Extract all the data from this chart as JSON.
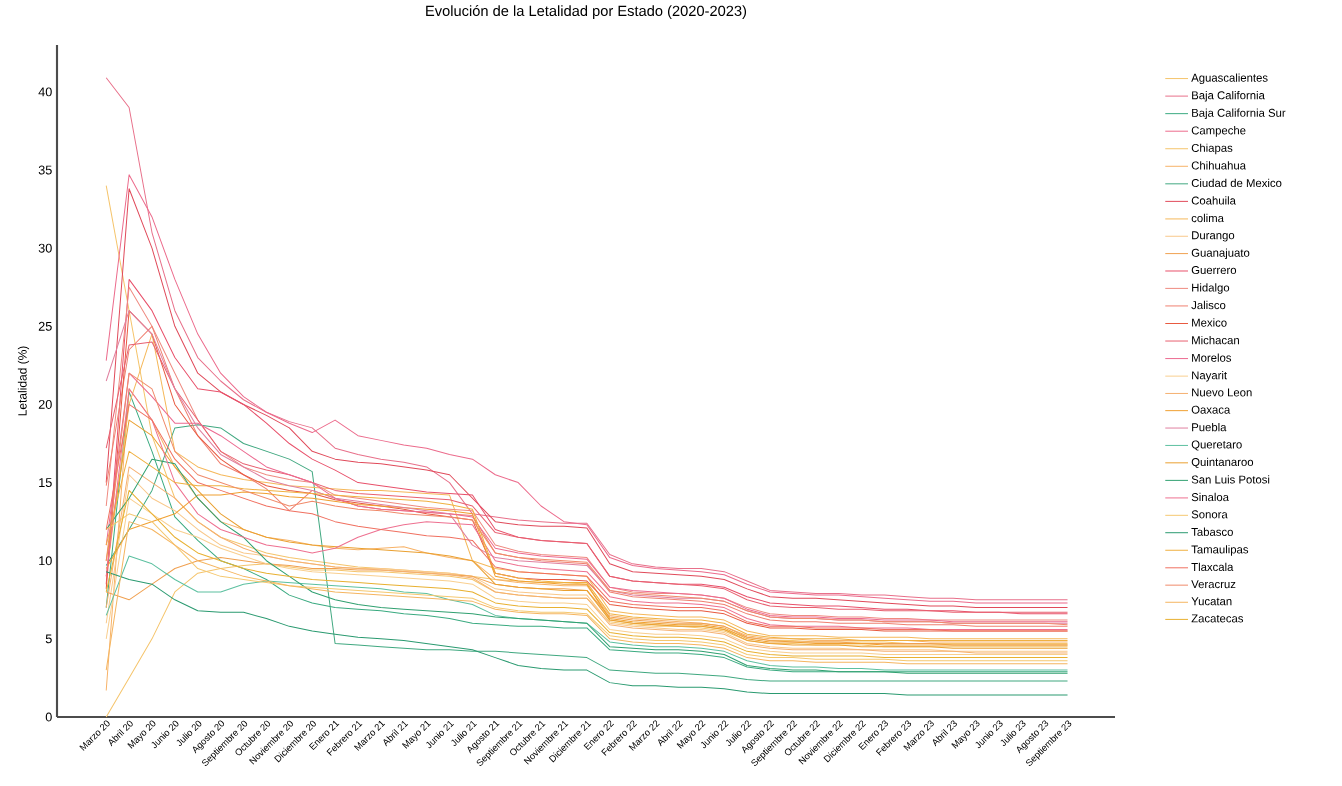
{
  "chart_data": {
    "type": "line",
    "title": "Evolución de la Letalidad por Estado (2020-2023)",
    "ylabel": "Letalidad (%)",
    "categories": [
      "Marzo 20",
      "Abril 20",
      "Mayo 20",
      "Junio 20",
      "Julio 20",
      "Agosto 20",
      "Septiembre 20",
      "Octubre 20",
      "Noviembre 20",
      "Diciembre 20",
      "Enero 21",
      "Febrero 21",
      "Marzo 21",
      "Abril 21",
      "Mayo 21",
      "Junio 21",
      "Julio 21",
      "Agosto 21",
      "Septiembre 21",
      "Octubre 21",
      "Noviembre 21",
      "Diciembre 21",
      "Enero 22",
      "Febrero 22",
      "Marzo 22",
      "Abril 22",
      "Mayo 22",
      "Junio 22",
      "Julio 22",
      "Agosto 22",
      "Septiembre 22",
      "Octubre 22",
      "Noviembre 22",
      "Diciembre 22",
      "Enero 23",
      "Febrero 23",
      "Marzo 23",
      "Abril 23",
      "Mayo 23",
      "Junio 23",
      "Julio 23",
      "Agosto 23",
      "Septiembre 23"
    ],
    "ylim": [
      0,
      43
    ],
    "yticks": [
      0,
      5,
      10,
      15,
      20,
      25,
      30,
      35,
      40
    ],
    "legend": "right",
    "series": [
      {
        "name": "Aguascalientes",
        "color": "#f5c46b",
        "values": [
          34,
          26,
          18,
          14,
          12.5,
          11.5,
          11,
          10.5,
          10.2,
          10,
          9.8,
          9.6,
          9.5,
          9.4,
          9.3,
          9.2,
          9,
          8.8,
          8.7,
          8.6,
          8.6,
          8.5,
          6.2,
          6,
          5.9,
          5.8,
          5.8,
          5.6,
          5.1,
          4.9,
          4.9,
          4.8,
          4.8,
          4.8,
          4.8,
          4.7,
          4.7,
          4.7,
          4.7,
          4.7,
          4.7,
          4.7,
          4.7
        ]
      },
      {
        "name": "Baja California",
        "color": "#e8708a",
        "values": [
          40.9,
          39,
          31,
          26,
          23,
          21.5,
          20.3,
          19.5,
          18.9,
          18.5,
          17.2,
          16.8,
          16.5,
          16.3,
          16,
          15,
          13,
          12.8,
          12.6,
          12.5,
          12.4,
          12.4,
          10.4,
          9.8,
          9.6,
          9.5,
          9.5,
          9.3,
          8.7,
          8.1,
          8,
          7.9,
          7.9,
          7.8,
          7.8,
          7.7,
          7.6,
          7.6,
          7.5,
          7.5,
          7.5,
          7.5,
          7.5
        ]
      },
      {
        "name": "Baja California Sur",
        "color": "#3aaa80",
        "values": [
          7,
          20.8,
          17,
          12.8,
          11.3,
          10,
          9.5,
          8.8,
          7.8,
          7.3,
          7,
          6.9,
          6.8,
          6.6,
          6.5,
          6.3,
          6,
          5.9,
          5.8,
          5.8,
          5.7,
          5.7,
          4.3,
          4.2,
          4.1,
          4.1,
          4,
          3.8,
          3.2,
          3,
          2.9,
          2.9,
          2.9,
          2.9,
          2.9,
          2.9,
          2.9,
          2.9,
          2.9,
          2.9,
          2.9,
          2.9,
          2.9
        ]
      },
      {
        "name": "Campeche",
        "color": "#ec6b8c",
        "values": [
          22.8,
          34.7,
          32,
          28,
          24.5,
          22,
          20.5,
          19.5,
          18.8,
          18.2,
          19,
          18,
          17.7,
          17.4,
          17.2,
          16.8,
          16.5,
          15.5,
          15,
          13.5,
          12.5,
          12.3,
          10.2,
          9.7,
          9.5,
          9.4,
          9.3,
          9.1,
          8.5,
          8,
          7.9,
          7.8,
          7.8,
          7.7,
          7.6,
          7.5,
          7.4,
          7.4,
          7.3,
          7.3,
          7.3,
          7.3,
          7.3
        ]
      },
      {
        "name": "Chiapas",
        "color": "#f5c46b",
        "values": [
          0,
          2.5,
          5,
          8,
          9.2,
          9.5,
          9.7,
          9.8,
          9.6,
          9.4,
          9.4,
          9.3,
          9.3,
          9.2,
          9.1,
          9,
          8.8,
          8,
          7.8,
          7.7,
          7.6,
          7.6,
          6.1,
          5.9,
          5.8,
          5.8,
          5.7,
          5.5,
          4.9,
          4.7,
          4.7,
          4.6,
          4.6,
          4.6,
          4.5,
          4.5,
          4.5,
          4.5,
          4.5,
          4.5,
          4.5,
          4.5,
          4.5
        ]
      },
      {
        "name": "Chihuahua",
        "color": "#f7b267",
        "values": [
          1.7,
          21,
          19,
          16,
          14,
          12.5,
          12,
          11.5,
          11.3,
          11,
          10.8,
          10.7,
          10.8,
          10.9,
          10.5,
          10.2,
          10,
          8.8,
          8.6,
          8.5,
          8.4,
          8.4,
          6.5,
          6.3,
          6.2,
          6.1,
          6,
          5.8,
          5.2,
          5,
          5,
          4.9,
          4.9,
          4.9,
          4.9,
          4.9,
          4.8,
          4.8,
          4.8,
          4.8,
          4.8,
          4.8,
          4.8
        ]
      },
      {
        "name": "Ciudad de Mexico",
        "color": "#40a880",
        "values": [
          9.7,
          12,
          14.5,
          18.5,
          18.7,
          18.5,
          17.5,
          17,
          16.5,
          15.7,
          4.7,
          4.6,
          4.5,
          4.4,
          4.3,
          4.3,
          4.2,
          4.2,
          4.1,
          4,
          3.9,
          3.8,
          3,
          2.9,
          2.8,
          2.8,
          2.7,
          2.6,
          2.4,
          2.3,
          2.3,
          2.3,
          2.3,
          2.3,
          2.3,
          2.3,
          2.3,
          2.3,
          2.3,
          2.3,
          2.3,
          2.3,
          2.3
        ]
      },
      {
        "name": "Coahuila",
        "color": "#e04a5a",
        "values": [
          15,
          33.8,
          30,
          25,
          22,
          20.8,
          20,
          19.3,
          18.5,
          17,
          16.5,
          16.3,
          16.2,
          16,
          15.8,
          15.5,
          14,
          12.5,
          12.3,
          12.2,
          12.2,
          12.1,
          9.8,
          9.3,
          9.2,
          9.1,
          9,
          8.8,
          8.2,
          7.7,
          7.6,
          7.6,
          7.5,
          7.4,
          7.3,
          7.2,
          7.1,
          7.1,
          7,
          7,
          7,
          7,
          7
        ]
      },
      {
        "name": "colima",
        "color": "#f5b85a",
        "values": [
          9,
          20,
          24.5,
          17,
          16,
          15.5,
          15.2,
          15,
          14.8,
          14.7,
          14.6,
          14.5,
          14.5,
          14.4,
          14.3,
          14.2,
          10,
          9.5,
          9.3,
          9.2,
          9.1,
          9,
          6.8,
          6.6,
          6.5,
          6.4,
          6.4,
          6.2,
          5.5,
          5.2,
          5.2,
          5.2,
          5.1,
          5.1,
          5.1,
          5.1,
          5,
          5,
          5,
          5,
          5,
          5,
          5
        ]
      },
      {
        "name": "Durango",
        "color": "#f9c88a",
        "values": [
          6,
          15.5,
          14,
          13.2,
          12,
          11,
          10.5,
          10.3,
          10,
          9.8,
          9.6,
          9.5,
          9.5,
          9.4,
          9.3,
          9.2,
          9,
          8.2,
          8,
          7.9,
          7.8,
          7.8,
          6,
          5.8,
          5.7,
          5.6,
          5.6,
          5.4,
          4.7,
          4.5,
          4.4,
          4.4,
          4.4,
          4.3,
          4.3,
          4.3,
          4.3,
          4.2,
          4.2,
          4.2,
          4.2,
          4.2,
          4.2
        ]
      },
      {
        "name": "Guanajuato",
        "color": "#f0a050",
        "values": [
          8,
          7.5,
          8.5,
          9.5,
          10,
          10.2,
          10,
          9.8,
          9.7,
          9.5,
          9.5,
          9.4,
          9.4,
          9.3,
          9.2,
          9.1,
          9,
          8.5,
          8.3,
          8.2,
          8.2,
          8.1,
          6.4,
          6.2,
          6.1,
          6,
          6,
          5.8,
          5.1,
          4.9,
          4.8,
          4.8,
          4.8,
          4.7,
          4.7,
          4.7,
          4.7,
          4.6,
          4.6,
          4.6,
          4.6,
          4.6,
          4.6
        ]
      },
      {
        "name": "Guerrero",
        "color": "#e8506a",
        "values": [
          8.5,
          28,
          26,
          23,
          21,
          20.8,
          20,
          18.8,
          17.5,
          16.5,
          15.8,
          15,
          14.8,
          14.6,
          14.4,
          14.3,
          14.2,
          12,
          11.5,
          11.3,
          11.2,
          11.1,
          9,
          8.7,
          8.6,
          8.5,
          8.5,
          8.3,
          7.7,
          7.3,
          7.2,
          7.1,
          7.1,
          7,
          6.9,
          6.9,
          6.8,
          6.8,
          6.7,
          6.7,
          6.6,
          6.6,
          6.6
        ]
      },
      {
        "name": "Hidalgo",
        "color": "#ef8a80",
        "values": [
          13.5,
          27.5,
          25,
          22,
          19,
          17,
          16,
          15.5,
          15.2,
          15,
          14.2,
          14,
          13.8,
          13.6,
          13.4,
          13.3,
          13.2,
          11,
          10.6,
          10.4,
          10.3,
          10.2,
          8.3,
          8,
          7.9,
          7.9,
          7.8,
          7.6,
          7,
          6.6,
          6.5,
          6.5,
          6.4,
          6.4,
          6.3,
          6.3,
          6.2,
          6.2,
          6.2,
          6.2,
          6.2,
          6.2,
          6.2
        ]
      },
      {
        "name": "Jalisco",
        "color": "#f08070",
        "values": [
          14.8,
          23.5,
          25,
          21,
          18,
          16.2,
          15.5,
          14.6,
          13.2,
          14.5,
          14,
          13.5,
          13.3,
          13.2,
          13.1,
          13,
          12.9,
          10.5,
          10.2,
          10,
          9.9,
          9.8,
          8,
          7.7,
          7.6,
          7.5,
          7.4,
          7.2,
          6.6,
          6.2,
          6.1,
          6.1,
          6,
          6,
          6,
          5.9,
          5.9,
          5.9,
          5.8,
          5.8,
          5.8,
          5.8,
          5.8
        ]
      },
      {
        "name": "Mexico",
        "color": "#e85a40",
        "values": [
          8.2,
          26,
          24.5,
          20,
          18,
          16.5,
          15.5,
          14.8,
          14.5,
          14.3,
          13.9,
          13.7,
          13.5,
          13.3,
          13,
          12.8,
          12.6,
          9.2,
          8.9,
          8.8,
          8.8,
          8.7,
          7.2,
          7,
          6.9,
          6.8,
          6.8,
          6.6,
          6,
          5.7,
          5.7,
          5.6,
          5.6,
          5.6,
          5.5,
          5.5,
          5.5,
          5.5,
          5.5,
          5.5,
          5.5,
          5.5,
          5.5
        ]
      },
      {
        "name": "Michacan",
        "color": "#e86070",
        "values": [
          17.2,
          23.8,
          24,
          21,
          19,
          17,
          16.2,
          15.8,
          15.5,
          15,
          14.5,
          14.3,
          14.2,
          14.1,
          14,
          13.9,
          13.5,
          11.8,
          11.5,
          11.3,
          11.2,
          11.1,
          9,
          8.7,
          8.6,
          8.5,
          8.4,
          8.2,
          7.5,
          7.1,
          7,
          7,
          6.9,
          6.9,
          6.8,
          6.8,
          6.8,
          6.7,
          6.7,
          6.7,
          6.7,
          6.7,
          6.7
        ]
      },
      {
        "name": "Morelos",
        "color": "#ec6a90",
        "values": [
          11,
          22,
          20.5,
          18.8,
          18.8,
          18,
          17,
          16,
          15.5,
          15,
          14,
          13.5,
          13.3,
          13.2,
          13.1,
          13,
          12.8,
          10.8,
          10.5,
          10.3,
          10.2,
          10.1,
          8.3,
          8.1,
          8,
          7.9,
          7.8,
          7.6,
          6.9,
          6.5,
          6.4,
          6.4,
          6.3,
          6.3,
          6.2,
          6.2,
          6.2,
          6.1,
          6.1,
          6.1,
          6.1,
          6.1,
          6.1
        ]
      },
      {
        "name": "Nayarit",
        "color": "#f9cf8f",
        "values": [
          5,
          14,
          13,
          12,
          11.5,
          10.8,
          10.3,
          9.8,
          9.5,
          9.3,
          9.2,
          9.1,
          9,
          8.9,
          8.8,
          8.7,
          8.5,
          7.6,
          7.4,
          7.3,
          7.3,
          7.2,
          5.6,
          5.4,
          5.3,
          5.3,
          5.2,
          5,
          4.4,
          4.2,
          4.1,
          4.1,
          4.1,
          4.1,
          4,
          4,
          4,
          4,
          4,
          4,
          4,
          4,
          4
        ]
      },
      {
        "name": "Nuevo Leon",
        "color": "#f5b070",
        "values": [
          7,
          16,
          15,
          14,
          12.5,
          11.5,
          10.8,
          10.3,
          10,
          9.8,
          9.6,
          9.5,
          9.4,
          9.3,
          9.2,
          9.1,
          8.9,
          8,
          7.8,
          7.7,
          7.6,
          7.6,
          5.9,
          5.7,
          5.6,
          5.5,
          5.5,
          5.3,
          4.6,
          4.4,
          4.3,
          4.3,
          4.3,
          4.3,
          4.2,
          4.2,
          4.2,
          4.2,
          4.1,
          4.1,
          4.1,
          4.1,
          4.1
        ]
      },
      {
        "name": "Oaxaca",
        "color": "#f0a030",
        "values": [
          9.5,
          12,
          12.5,
          13,
          14.2,
          14.2,
          14.4,
          14.3,
          14.1,
          14,
          13.8,
          13.6,
          13.5,
          13.4,
          13.3,
          13.2,
          13,
          9,
          8.7,
          8.6,
          8.5,
          8.5,
          6.3,
          6.1,
          6,
          5.9,
          5.9,
          5.7,
          5,
          4.8,
          4.8,
          4.7,
          4.7,
          4.7,
          4.6,
          4.6,
          4.6,
          4.6,
          4.6,
          4.6,
          4.6,
          4.6,
          4.6
        ]
      },
      {
        "name": "Puebla",
        "color": "#e080a0",
        "values": [
          21.5,
          26,
          24.5,
          21,
          18.5,
          16.8,
          16,
          15.2,
          14.8,
          14.5,
          14,
          13.8,
          13.6,
          13.4,
          13.2,
          13,
          11,
          10.2,
          10,
          9.9,
          9.8,
          9.7,
          8.1,
          7.8,
          7.7,
          7.6,
          7.6,
          7.4,
          6.8,
          6.4,
          6.3,
          6.3,
          6.2,
          6.2,
          6.1,
          6.1,
          6.1,
          6,
          6,
          6,
          6,
          6,
          6
        ]
      },
      {
        "name": "Queretaro",
        "color": "#5cc0a0",
        "values": [
          6.5,
          10.3,
          9.8,
          8.8,
          8,
          8,
          8.5,
          8.7,
          8.6,
          8.5,
          8.4,
          8.3,
          8.2,
          8,
          7.9,
          7.5,
          7.2,
          6.5,
          6.3,
          6.2,
          6.1,
          6,
          4.8,
          4.6,
          4.5,
          4.5,
          4.4,
          4.2,
          3.6,
          3.3,
          3.2,
          3.2,
          3.1,
          3.1,
          3,
          3,
          3,
          3,
          3,
          3,
          3,
          3,
          3
        ]
      },
      {
        "name": "Quintanaroo",
        "color": "#eaa030",
        "values": [
          10,
          19,
          18,
          16,
          14.5,
          13,
          12,
          11.5,
          11.2,
          11,
          10.9,
          10.8,
          10.7,
          10.6,
          10.5,
          10.3,
          10,
          8.5,
          8.3,
          8.2,
          8.1,
          8.1,
          6.2,
          6,
          5.9,
          5.8,
          5.8,
          5.6,
          4.9,
          4.7,
          4.6,
          4.6,
          4.6,
          4.5,
          4.5,
          4.5,
          4.5,
          4.4,
          4.4,
          4.4,
          4.4,
          4.4,
          4.4
        ]
      },
      {
        "name": "San Luis Potosi",
        "color": "#30a070",
        "values": [
          12,
          14,
          16.5,
          16.2,
          14,
          12.5,
          11.5,
          10,
          9,
          8,
          7.5,
          7.2,
          7,
          6.9,
          6.8,
          6.7,
          6.6,
          6.4,
          6.3,
          6.2,
          6.1,
          6,
          4.5,
          4.4,
          4.3,
          4.3,
          4.2,
          4,
          3.3,
          3.1,
          3,
          3,
          2.9,
          2.9,
          2.9,
          2.8,
          2.8,
          2.8,
          2.8,
          2.8,
          2.8,
          2.8,
          2.8
        ]
      },
      {
        "name": "Sinaloa",
        "color": "#ee7090",
        "values": [
          9,
          21,
          19,
          15,
          13,
          12,
          11.5,
          11,
          10.8,
          10.5,
          10.8,
          11.5,
          12,
          12.3,
          12.5,
          12.4,
          12.3,
          10,
          9.7,
          9.5,
          9.4,
          9.3,
          7.7,
          7.4,
          7.3,
          7.3,
          7.2,
          7,
          6.3,
          5.9,
          5.8,
          5.8,
          5.8,
          5.7,
          5.7,
          5.7,
          5.6,
          5.6,
          5.6,
          5.6,
          5.6,
          5.6,
          5.6
        ]
      },
      {
        "name": "Sonora",
        "color": "#f5c870",
        "values": [
          12,
          13,
          12.5,
          11,
          9.5,
          9,
          8.8,
          8.6,
          8.4,
          8.3,
          8.2,
          8.1,
          8,
          7.9,
          7.8,
          7.7,
          7.6,
          7,
          6.8,
          6.7,
          6.7,
          6.6,
          5.2,
          5,
          4.9,
          4.9,
          4.8,
          4.6,
          4,
          3.8,
          3.8,
          3.7,
          3.7,
          3.7,
          3.7,
          3.6,
          3.6,
          3.6,
          3.6,
          3.6,
          3.6,
          3.6,
          3.6
        ]
      },
      {
        "name": "Tabasco",
        "color": "#2a9a70",
        "values": [
          9.3,
          8.8,
          8.5,
          7.5,
          6.8,
          6.7,
          6.7,
          6.3,
          5.8,
          5.5,
          5.3,
          5.1,
          5,
          4.9,
          4.7,
          4.5,
          4.3,
          3.8,
          3.3,
          3.1,
          3,
          3,
          2.2,
          2,
          2,
          1.9,
          1.9,
          1.8,
          1.6,
          1.5,
          1.5,
          1.5,
          1.5,
          1.5,
          1.5,
          1.4,
          1.4,
          1.4,
          1.4,
          1.4,
          1.4,
          1.4,
          1.4
        ]
      },
      {
        "name": "Tamaulipas",
        "color": "#f0b040",
        "values": [
          11,
          17,
          16,
          15,
          14.8,
          14.8,
          14.6,
          14.5,
          14.4,
          14.3,
          14.2,
          14.1,
          14,
          13.9,
          13.8,
          13.6,
          13.3,
          9.2,
          8.9,
          8.7,
          8.6,
          8.6,
          6.6,
          6.4,
          6.3,
          6.2,
          6.2,
          6,
          5.3,
          5.1,
          5,
          5,
          5,
          4.9,
          4.9,
          4.9,
          4.9,
          4.9,
          4.9,
          4.9,
          4.9,
          4.9,
          4.9
        ]
      },
      {
        "name": "Tlaxcala",
        "color": "#f07060",
        "values": [
          12,
          20,
          19,
          16.5,
          15,
          14.5,
          14,
          13.5,
          13.2,
          13,
          12.5,
          12.2,
          12,
          11.8,
          11.6,
          11.5,
          11.3,
          9.6,
          9.3,
          9.2,
          9.1,
          9,
          7.4,
          7.2,
          7.1,
          7,
          7,
          6.8,
          6.1,
          5.8,
          5.8,
          5.7,
          5.7,
          5.7,
          5.6,
          5.6,
          5.6,
          5.5,
          5.5,
          5.5,
          5.5,
          5.5,
          5.5
        ]
      },
      {
        "name": "Veracruz",
        "color": "#f08a6a",
        "values": [
          10,
          22,
          21,
          17,
          15.5,
          15,
          14.5,
          14,
          13.5,
          13.8,
          13.5,
          13.3,
          13.2,
          13,
          12.9,
          12.8,
          12.6,
          10.5,
          10.2,
          10.1,
          10,
          9.9,
          8.1,
          7.9,
          7.8,
          7.7,
          7.6,
          7.4,
          6.8,
          6.4,
          6.3,
          6.3,
          6.2,
          6.2,
          6.1,
          6.1,
          6.1,
          6,
          6,
          6,
          6,
          6,
          5.9
        ]
      },
      {
        "name": "Yucatan",
        "color": "#f5b560",
        "values": [
          3,
          12.5,
          12,
          11,
          10,
          9.5,
          9,
          8.7,
          8.4,
          8.2,
          8,
          7.9,
          7.8,
          7.7,
          7.6,
          7.5,
          7.4,
          6.9,
          6.7,
          6.6,
          6.6,
          6.5,
          5,
          4.8,
          4.7,
          4.7,
          4.6,
          4.4,
          3.8,
          3.6,
          3.6,
          3.5,
          3.5,
          3.5,
          3.5,
          3.4,
          3.4,
          3.4,
          3.4,
          3.4,
          3.4,
          3.4,
          3.4
        ]
      },
      {
        "name": "Zacatecas",
        "color": "#e8b030",
        "values": [
          8,
          14.5,
          13,
          11.5,
          10.5,
          10,
          9.5,
          9.2,
          9,
          8.8,
          8.7,
          8.6,
          8.5,
          8.4,
          8.3,
          8.2,
          8,
          7.3,
          7.1,
          7,
          7,
          6.9,
          5.4,
          5.2,
          5.1,
          5.1,
          5,
          4.8,
          4.2,
          4,
          3.9,
          3.9,
          3.9,
          3.9,
          3.8,
          3.8,
          3.8,
          3.8,
          3.8,
          3.8,
          3.8,
          3.8,
          3.8
        ]
      }
    ]
  }
}
